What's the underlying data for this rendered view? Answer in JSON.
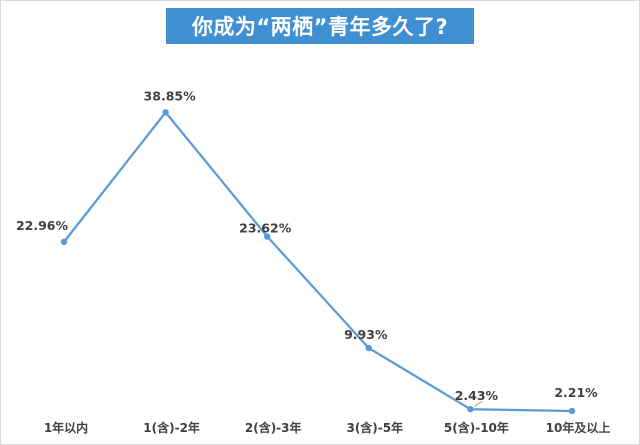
{
  "chart_data": {
    "type": "line",
    "title": "你成为“两栖”青年多久了?",
    "categories": [
      "1年以内",
      "1(含)-2年",
      "2(含)-3年",
      "3(含)-5年",
      "5(含)-10年",
      "10年及以上"
    ],
    "series": [
      {
        "values": [
          22.96,
          38.85,
          23.62,
          9.93,
          2.43,
          2.21
        ],
        "data_labels": [
          "22.96%",
          "38.85%",
          "23.62%",
          "9.93%",
          "2.43%",
          "2.21%"
        ]
      }
    ],
    "ylim": [
      0,
      45
    ],
    "grid": false,
    "legend": "none"
  },
  "colors": {
    "line": "#5b9bd5",
    "title_background": "#3f8fd2",
    "title_text": "#ffffff",
    "label_text": "#404040"
  }
}
